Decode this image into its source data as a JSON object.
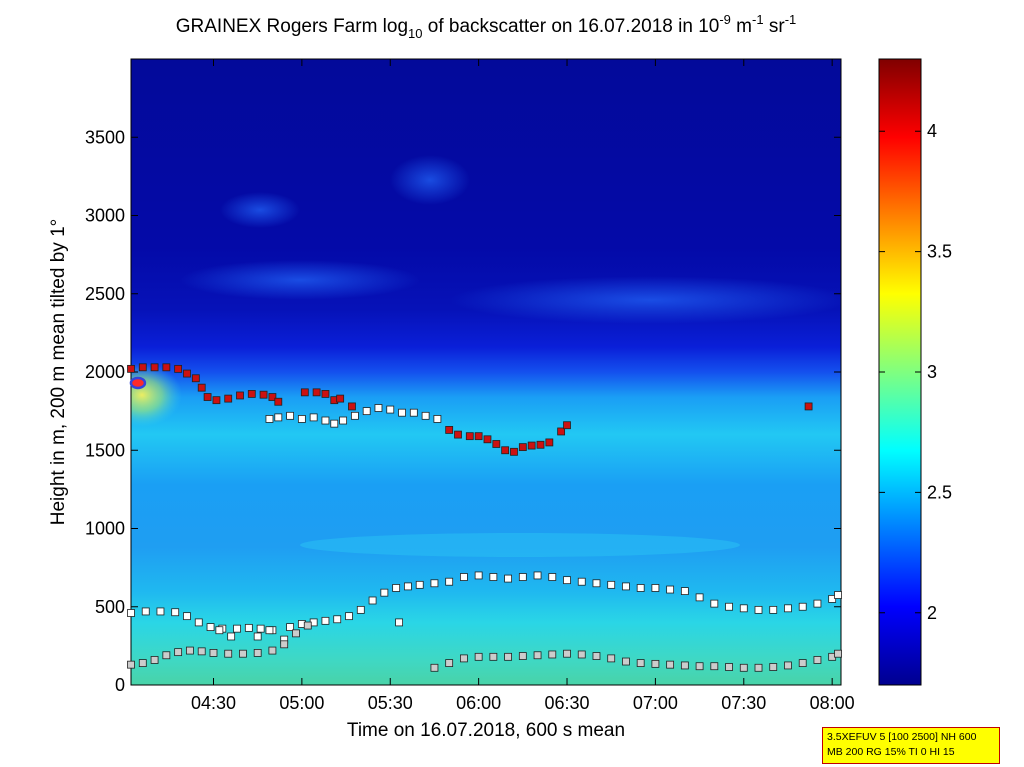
{
  "chart_data": {
    "type": "heatmap",
    "title": {
      "part1": "GRAINEX Rogers Farm log",
      "sub": "10",
      "part2": " of backscatter on 16.07.2018 in 10",
      "sup1": "-9",
      "part3": " m",
      "sup2": "-1",
      "part4": " sr",
      "sup3": "-1"
    },
    "xlabel": "Time on 16.07.2018, 600 s mean",
    "ylabel": "Height in m, 200 m mean tilted by 1°",
    "x_ticks": [
      "04:30",
      "05:00",
      "05:30",
      "06:00",
      "06:30",
      "07:00",
      "07:30",
      "08:00"
    ],
    "xlim": [
      "04:02",
      "08:03"
    ],
    "y_ticks": [
      0,
      500,
      1000,
      1500,
      2000,
      2500,
      3000,
      3500
    ],
    "ylim": [
      0,
      4000
    ],
    "colorbar": {
      "ticks": [
        2,
        2.5,
        3,
        3.5,
        4
      ],
      "range": [
        1.7,
        4.3
      ]
    },
    "layers": [
      {
        "name": "upper",
        "color": "#cc1111",
        "points": [
          [
            "04:02",
            2020
          ],
          [
            "04:06",
            2030
          ],
          [
            "04:10",
            2030
          ],
          [
            "04:14",
            2030
          ],
          [
            "04:18",
            2020
          ],
          [
            "04:21",
            1990
          ],
          [
            "04:24",
            1960
          ],
          [
            "04:26",
            1900
          ],
          [
            "04:28",
            1840
          ],
          [
            "04:31",
            1820
          ],
          [
            "04:35",
            1830
          ],
          [
            "04:39",
            1850
          ],
          [
            "04:43",
            1860
          ],
          [
            "04:47",
            1855
          ],
          [
            "04:50",
            1840
          ],
          [
            "04:52",
            1810
          ],
          [
            "05:01",
            1870
          ],
          [
            "05:05",
            1870
          ],
          [
            "05:08",
            1860
          ],
          [
            "05:11",
            1820
          ],
          [
            "05:13",
            1830
          ],
          [
            "05:17",
            1780
          ],
          [
            "05:50",
            1630
          ],
          [
            "05:53",
            1600
          ],
          [
            "05:57",
            1590
          ],
          [
            "06:00",
            1590
          ],
          [
            "06:03",
            1570
          ],
          [
            "06:06",
            1540
          ],
          [
            "06:09",
            1500
          ],
          [
            "06:12",
            1490
          ],
          [
            "06:15",
            1520
          ],
          [
            "06:18",
            1530
          ],
          [
            "06:21",
            1535
          ],
          [
            "06:24",
            1550
          ],
          [
            "06:28",
            1620
          ],
          [
            "06:30",
            1660
          ],
          [
            "07:52",
            1780
          ]
        ]
      },
      {
        "name": "mid-upper",
        "color": "#ffffff",
        "points": [
          [
            "04:49",
            1700
          ],
          [
            "04:52",
            1710
          ],
          [
            "04:56",
            1720
          ],
          [
            "05:00",
            1700
          ],
          [
            "05:04",
            1710
          ],
          [
            "05:08",
            1690
          ],
          [
            "05:11",
            1670
          ],
          [
            "05:14",
            1690
          ],
          [
            "05:18",
            1720
          ],
          [
            "05:22",
            1750
          ],
          [
            "05:26",
            1770
          ],
          [
            "05:30",
            1760
          ],
          [
            "05:34",
            1740
          ],
          [
            "05:38",
            1740
          ],
          [
            "05:42",
            1720
          ],
          [
            "05:46",
            1700
          ]
        ]
      },
      {
        "name": "middle",
        "color": "#ffffff",
        "points": [
          [
            "04:02",
            460
          ],
          [
            "04:07",
            470
          ],
          [
            "04:12",
            470
          ],
          [
            "04:17",
            465
          ],
          [
            "04:21",
            440
          ],
          [
            "04:25",
            400
          ],
          [
            "04:29",
            370
          ],
          [
            "04:33",
            360
          ],
          [
            "04:38",
            360
          ],
          [
            "04:42",
            365
          ],
          [
            "04:46",
            360
          ],
          [
            "04:50",
            350
          ],
          [
            "04:54",
            290
          ],
          [
            "04:56",
            370
          ],
          [
            "05:00",
            390
          ],
          [
            "05:04",
            400
          ],
          [
            "05:08",
            410
          ],
          [
            "05:12",
            420
          ],
          [
            "05:16",
            440
          ],
          [
            "05:20",
            480
          ],
          [
            "05:24",
            540
          ],
          [
            "05:28",
            590
          ],
          [
            "05:32",
            620
          ],
          [
            "05:36",
            630
          ],
          [
            "05:40",
            640
          ],
          [
            "05:45",
            650
          ],
          [
            "05:50",
            660
          ],
          [
            "05:55",
            690
          ],
          [
            "06:00",
            700
          ],
          [
            "06:05",
            690
          ],
          [
            "06:10",
            680
          ],
          [
            "06:15",
            690
          ],
          [
            "06:20",
            700
          ],
          [
            "06:25",
            690
          ],
          [
            "06:30",
            670
          ],
          [
            "06:35",
            660
          ],
          [
            "06:40",
            650
          ],
          [
            "06:45",
            640
          ],
          [
            "06:50",
            630
          ],
          [
            "06:55",
            620
          ],
          [
            "07:00",
            620
          ],
          [
            "07:05",
            610
          ],
          [
            "07:10",
            600
          ],
          [
            "07:15",
            560
          ],
          [
            "07:20",
            520
          ],
          [
            "07:25",
            500
          ],
          [
            "07:30",
            490
          ],
          [
            "07:35",
            480
          ],
          [
            "07:40",
            480
          ],
          [
            "07:45",
            490
          ],
          [
            "07:50",
            500
          ],
          [
            "07:55",
            520
          ],
          [
            "08:00",
            550
          ],
          [
            "08:02",
            575
          ]
        ]
      },
      {
        "name": "lower",
        "color": "#cccccc",
        "points": [
          [
            "04:02",
            130
          ],
          [
            "04:06",
            140
          ],
          [
            "04:10",
            160
          ],
          [
            "04:14",
            190
          ],
          [
            "04:18",
            210
          ],
          [
            "04:22",
            220
          ],
          [
            "04:26",
            215
          ],
          [
            "04:30",
            205
          ],
          [
            "04:35",
            200
          ],
          [
            "04:40",
            200
          ],
          [
            "04:45",
            205
          ],
          [
            "04:50",
            220
          ],
          [
            "04:54",
            260
          ],
          [
            "04:58",
            330
          ],
          [
            "05:02",
            380
          ],
          [
            "05:45",
            110
          ],
          [
            "05:50",
            140
          ],
          [
            "05:55",
            170
          ],
          [
            "06:00",
            180
          ],
          [
            "06:05",
            180
          ],
          [
            "06:10",
            180
          ],
          [
            "06:15",
            185
          ],
          [
            "06:20",
            190
          ],
          [
            "06:25",
            195
          ],
          [
            "06:30",
            200
          ],
          [
            "06:35",
            195
          ],
          [
            "06:40",
            185
          ],
          [
            "06:45",
            170
          ],
          [
            "06:50",
            150
          ],
          [
            "06:55",
            140
          ],
          [
            "07:00",
            135
          ],
          [
            "07:05",
            130
          ],
          [
            "07:10",
            125
          ],
          [
            "07:15",
            120
          ],
          [
            "07:20",
            120
          ],
          [
            "07:25",
            115
          ],
          [
            "07:30",
            110
          ],
          [
            "07:35",
            110
          ],
          [
            "07:40",
            115
          ],
          [
            "07:45",
            125
          ],
          [
            "07:50",
            140
          ],
          [
            "07:55",
            160
          ],
          [
            "08:00",
            180
          ],
          [
            "08:02",
            200
          ]
        ]
      },
      {
        "name": "isolated",
        "color": "#ffffff",
        "points": [
          [
            "04:36",
            310
          ],
          [
            "04:45",
            310
          ],
          [
            "05:33",
            400
          ],
          [
            "04:32",
            350
          ],
          [
            "04:49",
            350
          ]
        ]
      }
    ],
    "marker": {
      "x": "04:03",
      "y": 1930,
      "color": "#3344dd"
    }
  },
  "info_box": {
    "line1": "3.5XEFUV 5 [100 2500] NH 600",
    "line2": "MB 200 RG 15% TI 0 HI 15"
  }
}
